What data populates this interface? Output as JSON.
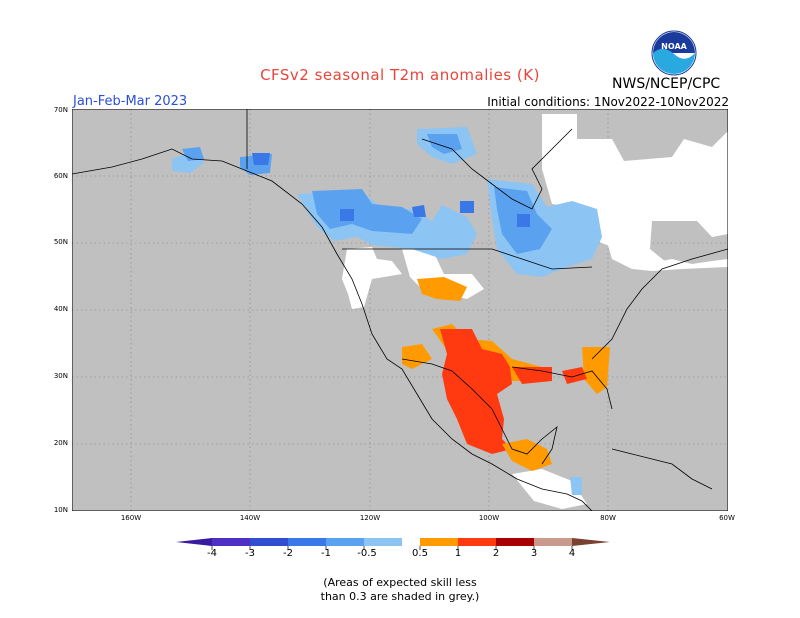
{
  "header": {
    "title": "CFSv2 seasonal T2m anomalies (K)",
    "org": "NWS/NCEP/CPC",
    "season": "Jan-Feb-Mar 2023",
    "initial_conditions": "Initial conditions: 1Nov2022-10Nov2022",
    "logo_text": "NOAA"
  },
  "map": {
    "lat_labels": [
      "70N",
      "60N",
      "50N",
      "40N",
      "30N",
      "20N",
      "10N"
    ],
    "lon_labels": [
      "160W",
      "140W",
      "120W",
      "100W",
      "80W",
      "60W"
    ],
    "grey_color": "#c0c0c0"
  },
  "colorbar": {
    "labels": [
      "-4",
      "-3",
      "-2",
      "-1",
      "-0.5",
      "0.5",
      "1",
      "2",
      "3",
      "4"
    ],
    "colors": [
      "#4f2fc4",
      "#2f4fd0",
      "#3a78e8",
      "#5aa2f0",
      "#8cc4f4",
      "#ffffff",
      "#ff9b00",
      "#ff3a10",
      "#a80000",
      "#c89a8c"
    ],
    "left_arrow_color": "#3a1aa0",
    "right_arrow_color": "#7a4030"
  },
  "footnote": {
    "line1": "(Areas of expected skill less",
    "line2": "than 0.3 are shaded in grey.)"
  }
}
